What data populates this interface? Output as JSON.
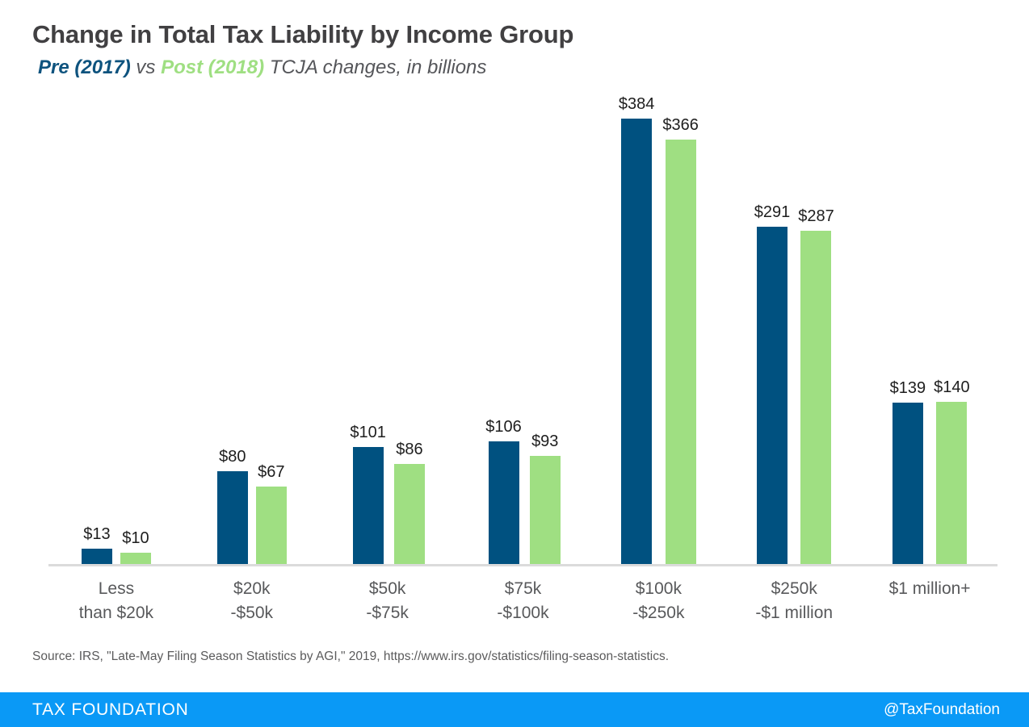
{
  "header": {
    "title": "Change in Total Tax Liability by Income Group",
    "subtitle_pre": "Pre (2017)",
    "subtitle_vs": " vs ",
    "subtitle_post": "Post (2018)",
    "subtitle_rest": " TCJA changes, in billions"
  },
  "chart_data": {
    "type": "bar",
    "title": "Change in Total Tax Liability by Income Group",
    "subtitle": "Pre (2017) vs Post (2018) TCJA changes, in billions",
    "unit": "billions of dollars",
    "categories": [
      "Less\nthan $20k",
      "$20k\n-$50k",
      "$50k\n-$75k",
      "$75k\n-$100k",
      "$100k\n-$250k",
      "$250k\n-$1 million",
      "$1 million+"
    ],
    "series": [
      {
        "name": "Pre (2017)",
        "color": "#005180",
        "values": [
          13,
          80,
          101,
          106,
          384,
          291,
          139
        ]
      },
      {
        "name": "Post (2018)",
        "color": "#9FDF82",
        "values": [
          10,
          67,
          86,
          93,
          366,
          287,
          140
        ]
      }
    ],
    "value_prefix": "$",
    "data_labels": true,
    "grid": false,
    "ylim": [
      0,
      384
    ],
    "legend_position": "inline-in-subtitle"
  },
  "source": {
    "text": "Source: IRS, \"Late-May Filing Season Statistics by AGI,\" 2019, https://www.irs.gov/statistics/filing-season-statistics."
  },
  "footer": {
    "brand": "TAX FOUNDATION",
    "handle": "@TaxFoundation"
  },
  "colors": {
    "pre_bar": "#005180",
    "post_bar": "#9FDF82",
    "subtitle_pre": "#0E537E",
    "subtitle_post": "#9FDF82",
    "footer_bg": "#0A99F6",
    "title_text": "#414042",
    "axis_label": "#58595B",
    "baseline": "#DBDBDB"
  }
}
